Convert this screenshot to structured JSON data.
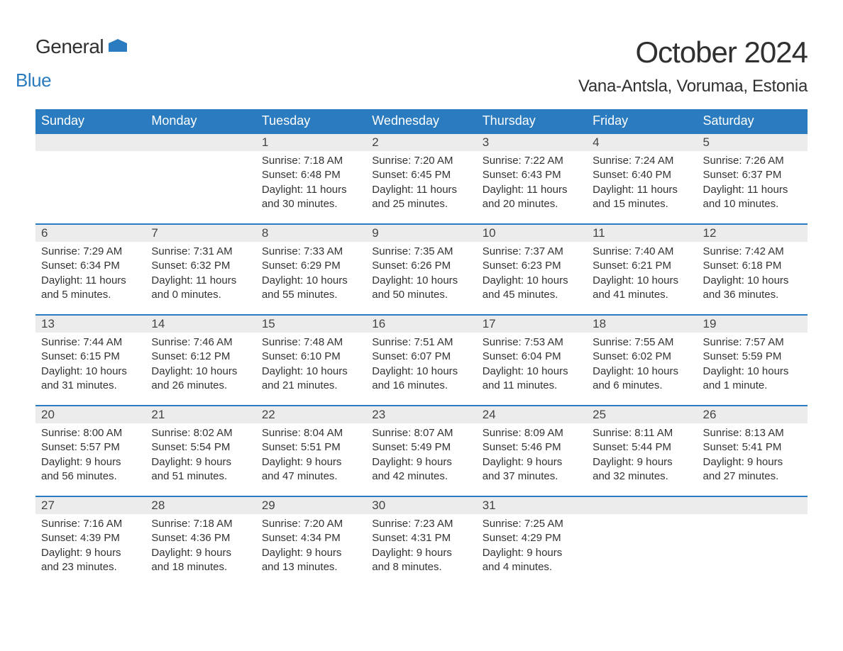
{
  "branding": {
    "logo_text1": "General",
    "logo_text2": "Blue",
    "flag_color": "#2a7bbf"
  },
  "header": {
    "month_title": "October 2024",
    "location": "Vana-Antsla, Vorumaa, Estonia"
  },
  "styling": {
    "header_bg": "#2a7bbf",
    "header_text": "#ffffff",
    "daynum_bg": "#ececec",
    "border_color": "#2a7bbf",
    "text_color": "#333333",
    "body_fontsize": 15,
    "header_fontsize": 18,
    "title_fontsize": 42,
    "location_fontsize": 24
  },
  "days_of_week": [
    "Sunday",
    "Monday",
    "Tuesday",
    "Wednesday",
    "Thursday",
    "Friday",
    "Saturday"
  ],
  "weeks": [
    [
      null,
      null,
      {
        "n": "1",
        "sunrise": "7:18 AM",
        "sunset": "6:48 PM",
        "daylight": "11 hours and 30 minutes."
      },
      {
        "n": "2",
        "sunrise": "7:20 AM",
        "sunset": "6:45 PM",
        "daylight": "11 hours and 25 minutes."
      },
      {
        "n": "3",
        "sunrise": "7:22 AM",
        "sunset": "6:43 PM",
        "daylight": "11 hours and 20 minutes."
      },
      {
        "n": "4",
        "sunrise": "7:24 AM",
        "sunset": "6:40 PM",
        "daylight": "11 hours and 15 minutes."
      },
      {
        "n": "5",
        "sunrise": "7:26 AM",
        "sunset": "6:37 PM",
        "daylight": "11 hours and 10 minutes."
      }
    ],
    [
      {
        "n": "6",
        "sunrise": "7:29 AM",
        "sunset": "6:34 PM",
        "daylight": "11 hours and 5 minutes."
      },
      {
        "n": "7",
        "sunrise": "7:31 AM",
        "sunset": "6:32 PM",
        "daylight": "11 hours and 0 minutes."
      },
      {
        "n": "8",
        "sunrise": "7:33 AM",
        "sunset": "6:29 PM",
        "daylight": "10 hours and 55 minutes."
      },
      {
        "n": "9",
        "sunrise": "7:35 AM",
        "sunset": "6:26 PM",
        "daylight": "10 hours and 50 minutes."
      },
      {
        "n": "10",
        "sunrise": "7:37 AM",
        "sunset": "6:23 PM",
        "daylight": "10 hours and 45 minutes."
      },
      {
        "n": "11",
        "sunrise": "7:40 AM",
        "sunset": "6:21 PM",
        "daylight": "10 hours and 41 minutes."
      },
      {
        "n": "12",
        "sunrise": "7:42 AM",
        "sunset": "6:18 PM",
        "daylight": "10 hours and 36 minutes."
      }
    ],
    [
      {
        "n": "13",
        "sunrise": "7:44 AM",
        "sunset": "6:15 PM",
        "daylight": "10 hours and 31 minutes."
      },
      {
        "n": "14",
        "sunrise": "7:46 AM",
        "sunset": "6:12 PM",
        "daylight": "10 hours and 26 minutes."
      },
      {
        "n": "15",
        "sunrise": "7:48 AM",
        "sunset": "6:10 PM",
        "daylight": "10 hours and 21 minutes."
      },
      {
        "n": "16",
        "sunrise": "7:51 AM",
        "sunset": "6:07 PM",
        "daylight": "10 hours and 16 minutes."
      },
      {
        "n": "17",
        "sunrise": "7:53 AM",
        "sunset": "6:04 PM",
        "daylight": "10 hours and 11 minutes."
      },
      {
        "n": "18",
        "sunrise": "7:55 AM",
        "sunset": "6:02 PM",
        "daylight": "10 hours and 6 minutes."
      },
      {
        "n": "19",
        "sunrise": "7:57 AM",
        "sunset": "5:59 PM",
        "daylight": "10 hours and 1 minute."
      }
    ],
    [
      {
        "n": "20",
        "sunrise": "8:00 AM",
        "sunset": "5:57 PM",
        "daylight": "9 hours and 56 minutes."
      },
      {
        "n": "21",
        "sunrise": "8:02 AM",
        "sunset": "5:54 PM",
        "daylight": "9 hours and 51 minutes."
      },
      {
        "n": "22",
        "sunrise": "8:04 AM",
        "sunset": "5:51 PM",
        "daylight": "9 hours and 47 minutes."
      },
      {
        "n": "23",
        "sunrise": "8:07 AM",
        "sunset": "5:49 PM",
        "daylight": "9 hours and 42 minutes."
      },
      {
        "n": "24",
        "sunrise": "8:09 AM",
        "sunset": "5:46 PM",
        "daylight": "9 hours and 37 minutes."
      },
      {
        "n": "25",
        "sunrise": "8:11 AM",
        "sunset": "5:44 PM",
        "daylight": "9 hours and 32 minutes."
      },
      {
        "n": "26",
        "sunrise": "8:13 AM",
        "sunset": "5:41 PM",
        "daylight": "9 hours and 27 minutes."
      }
    ],
    [
      {
        "n": "27",
        "sunrise": "7:16 AM",
        "sunset": "4:39 PM",
        "daylight": "9 hours and 23 minutes."
      },
      {
        "n": "28",
        "sunrise": "7:18 AM",
        "sunset": "4:36 PM",
        "daylight": "9 hours and 18 minutes."
      },
      {
        "n": "29",
        "sunrise": "7:20 AM",
        "sunset": "4:34 PM",
        "daylight": "9 hours and 13 minutes."
      },
      {
        "n": "30",
        "sunrise": "7:23 AM",
        "sunset": "4:31 PM",
        "daylight": "9 hours and 8 minutes."
      },
      {
        "n": "31",
        "sunrise": "7:25 AM",
        "sunset": "4:29 PM",
        "daylight": "9 hours and 4 minutes."
      },
      null,
      null
    ]
  ],
  "labels": {
    "sunrise": "Sunrise: ",
    "sunset": "Sunset: ",
    "daylight": "Daylight: "
  }
}
